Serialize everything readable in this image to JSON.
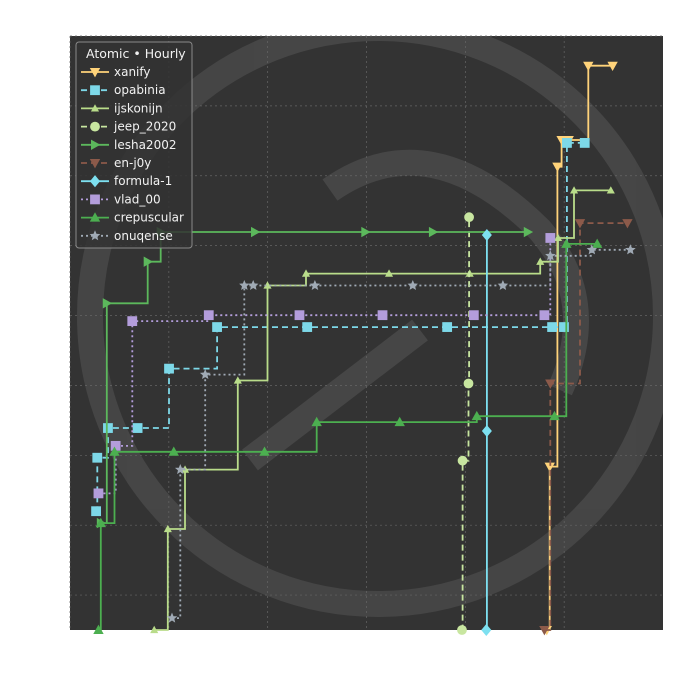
{
  "chart_data": {
    "type": "line",
    "step": true,
    "title": "",
    "xlabel": "",
    "ylabel": "",
    "xlim": [
      0,
      100
    ],
    "ylim": [
      0,
      100
    ],
    "grid": true,
    "background": "#333333",
    "legend": {
      "title": "Atomic • Hourly",
      "placement": "top-left"
    },
    "series": [
      {
        "name": "xanify",
        "color": "#ffd37a",
        "dash": "solid",
        "marker": "triangle-down",
        "x": [
          80.4,
          80.9,
          82.2,
          82.9,
          84.1,
          87.4,
          91.5
        ],
        "y": [
          0,
          27.5,
          78.0,
          82.5,
          82.5,
          95.0,
          95.0
        ]
      },
      {
        "name": "opabinia",
        "color": "#7dd8e8",
        "dash": "dashed",
        "marker": "square",
        "x": [
          4.4,
          4.6,
          6.4,
          11.4,
          16.7,
          24.8,
          40.0,
          63.6,
          81.3,
          83.3,
          83.8,
          86.8
        ],
        "y": [
          20,
          29,
          34,
          34,
          44,
          51,
          51,
          51,
          51,
          51,
          82,
          82
        ]
      },
      {
        "name": "ijskonijn",
        "color": "#b9dc8a",
        "dash": "solid",
        "marker": "thin-triangle",
        "x": [
          14.2,
          16.5,
          19.4,
          28.3,
          33.3,
          39.8,
          53.8,
          67.4,
          79.3,
          82.3,
          85.0,
          91.2
        ],
        "y": [
          0,
          17,
          27,
          42,
          58,
          60,
          60,
          60,
          62,
          66,
          74,
          74
        ]
      },
      {
        "name": "jeep_2020",
        "color": "#c8e6a0",
        "dash": "dashed",
        "marker": "circle",
        "x": [
          66.1,
          66.2,
          67.2,
          67.3
        ],
        "y": [
          0,
          28.5,
          41.5,
          69.5
        ]
      },
      {
        "name": "lesha2002",
        "color": "#5cb85c",
        "dash": "solid",
        "marker": "triangle-right",
        "x": [
          5.2,
          6.2,
          13.1,
          15.3,
          31.2,
          49.8,
          61.2,
          77.2
        ],
        "y": [
          18,
          55,
          62,
          67,
          67,
          67,
          67,
          67
        ]
      },
      {
        "name": "en-j0y",
        "color": "#8c5a4a",
        "dash": "dashed",
        "marker": "triangle-down",
        "x": [
          80.0,
          81.0,
          86.0,
          94.0
        ],
        "y": [
          0,
          41.5,
          68.5,
          68.5
        ]
      },
      {
        "name": "formula-1",
        "color": "#7de0f0",
        "dash": "solid",
        "marker": "diamond",
        "x": [
          70.2,
          70.3,
          70.3
        ],
        "y": [
          0,
          33.5,
          66.5
        ]
      },
      {
        "name": "vlad_00",
        "color": "#b39ddb",
        "dash": "dotted",
        "marker": "square",
        "x": [
          4.8,
          7.7,
          10.5,
          23.4,
          38.7,
          52.7,
          68.1,
          80.0,
          81.0
        ],
        "y": [
          23,
          31,
          52,
          53,
          53,
          53,
          53,
          53,
          66
        ]
      },
      {
        "name": "crepuscular",
        "color": "#4caf50",
        "dash": "solid",
        "marker": "triangle-up",
        "x": [
          4.8,
          5.2,
          7.5,
          17.5,
          32.8,
          41.6,
          55.6,
          68.6,
          81.7,
          83.7,
          88.9
        ],
        "y": [
          0,
          18,
          30,
          30,
          30,
          35,
          35,
          36,
          36,
          65,
          65
        ]
      },
      {
        "name": "onuqense",
        "color": "#a0aab5",
        "dash": "dotted",
        "marker": "star",
        "x": [
          17.2,
          18.6,
          22.8,
          29.4,
          30.9,
          41.3,
          57.8,
          73.0,
          81.0,
          88.0,
          94.5
        ],
        "y": [
          2,
          27,
          43,
          58,
          58,
          58,
          58,
          58,
          63,
          64,
          64
        ]
      }
    ]
  }
}
